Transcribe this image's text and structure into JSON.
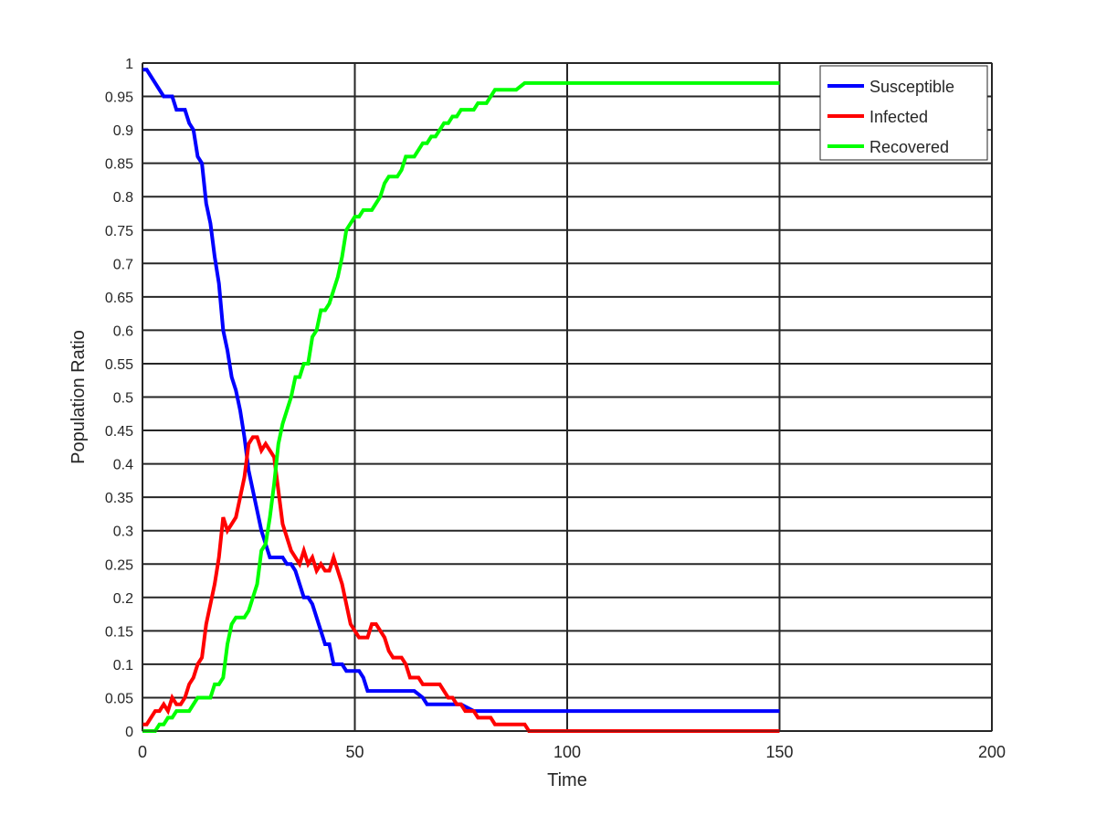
{
  "chart_data": {
    "type": "line",
    "title": "",
    "xlabel": "Time",
    "ylabel": "Population Ratio",
    "xlim": [
      0,
      200
    ],
    "ylim": [
      0,
      1
    ],
    "x_ticks": [
      "0",
      "50",
      "100",
      "150",
      "200"
    ],
    "y_ticks": [
      "0",
      "0.05",
      "0.1",
      "0.15",
      "0.2",
      "0.25",
      "0.3",
      "0.35",
      "0.4",
      "0.45",
      "0.5",
      "0.55",
      "0.6",
      "0.65",
      "0.7",
      "0.75",
      "0.8",
      "0.85",
      "0.9",
      "0.95",
      "1"
    ],
    "grid": true,
    "legend_position": "top-right",
    "series": [
      {
        "name": "Susceptible",
        "color": "#0000ff",
        "points": [
          [
            0,
            0.99
          ],
          [
            1,
            0.99
          ],
          [
            2,
            0.98
          ],
          [
            3,
            0.97
          ],
          [
            4,
            0.96
          ],
          [
            5,
            0.95
          ],
          [
            6,
            0.95
          ],
          [
            7,
            0.95
          ],
          [
            8,
            0.93
          ],
          [
            9,
            0.93
          ],
          [
            10,
            0.93
          ],
          [
            11,
            0.91
          ],
          [
            12,
            0.9
          ],
          [
            13,
            0.86
          ],
          [
            14,
            0.85
          ],
          [
            15,
            0.79
          ],
          [
            16,
            0.76
          ],
          [
            17,
            0.71
          ],
          [
            18,
            0.67
          ],
          [
            19,
            0.6
          ],
          [
            20,
            0.57
          ],
          [
            21,
            0.53
          ],
          [
            22,
            0.51
          ],
          [
            23,
            0.48
          ],
          [
            24,
            0.44
          ],
          [
            25,
            0.39
          ],
          [
            26,
            0.36
          ],
          [
            27,
            0.33
          ],
          [
            28,
            0.3
          ],
          [
            29,
            0.28
          ],
          [
            30,
            0.26
          ],
          [
            31,
            0.26
          ],
          [
            32,
            0.26
          ],
          [
            33,
            0.26
          ],
          [
            34,
            0.25
          ],
          [
            35,
            0.25
          ],
          [
            36,
            0.24
          ],
          [
            37,
            0.22
          ],
          [
            38,
            0.2
          ],
          [
            39,
            0.2
          ],
          [
            40,
            0.19
          ],
          [
            41,
            0.17
          ],
          [
            42,
            0.15
          ],
          [
            43,
            0.13
          ],
          [
            44,
            0.13
          ],
          [
            45,
            0.1
          ],
          [
            46,
            0.1
          ],
          [
            47,
            0.1
          ],
          [
            48,
            0.09
          ],
          [
            49,
            0.09
          ],
          [
            50,
            0.09
          ],
          [
            51,
            0.09
          ],
          [
            52,
            0.08
          ],
          [
            53,
            0.06
          ],
          [
            54,
            0.06
          ],
          [
            55,
            0.06
          ],
          [
            60,
            0.06
          ],
          [
            64,
            0.06
          ],
          [
            66,
            0.05
          ],
          [
            67,
            0.04
          ],
          [
            70,
            0.04
          ],
          [
            75,
            0.04
          ],
          [
            78,
            0.03
          ],
          [
            80,
            0.03
          ],
          [
            100,
            0.03
          ],
          [
            150,
            0.03
          ]
        ]
      },
      {
        "name": "Infected",
        "color": "#ff0000",
        "points": [
          [
            0,
            0.01
          ],
          [
            1,
            0.01
          ],
          [
            2,
            0.02
          ],
          [
            3,
            0.03
          ],
          [
            4,
            0.03
          ],
          [
            5,
            0.04
          ],
          [
            6,
            0.03
          ],
          [
            7,
            0.05
          ],
          [
            8,
            0.04
          ],
          [
            9,
            0.04
          ],
          [
            10,
            0.05
          ],
          [
            11,
            0.07
          ],
          [
            12,
            0.08
          ],
          [
            13,
            0.1
          ],
          [
            14,
            0.11
          ],
          [
            15,
            0.16
          ],
          [
            16,
            0.19
          ],
          [
            17,
            0.22
          ],
          [
            18,
            0.26
          ],
          [
            19,
            0.32
          ],
          [
            20,
            0.3
          ],
          [
            21,
            0.31
          ],
          [
            22,
            0.32
          ],
          [
            23,
            0.35
          ],
          [
            24,
            0.38
          ],
          [
            25,
            0.43
          ],
          [
            26,
            0.44
          ],
          [
            27,
            0.44
          ],
          [
            28,
            0.42
          ],
          [
            29,
            0.43
          ],
          [
            30,
            0.42
          ],
          [
            31,
            0.41
          ],
          [
            32,
            0.36
          ],
          [
            33,
            0.31
          ],
          [
            34,
            0.29
          ],
          [
            35,
            0.27
          ],
          [
            36,
            0.26
          ],
          [
            37,
            0.25
          ],
          [
            38,
            0.27
          ],
          [
            39,
            0.25
          ],
          [
            40,
            0.26
          ],
          [
            41,
            0.24
          ],
          [
            42,
            0.25
          ],
          [
            43,
            0.24
          ],
          [
            44,
            0.24
          ],
          [
            45,
            0.26
          ],
          [
            46,
            0.24
          ],
          [
            47,
            0.22
          ],
          [
            48,
            0.19
          ],
          [
            49,
            0.16
          ],
          [
            50,
            0.15
          ],
          [
            51,
            0.14
          ],
          [
            52,
            0.14
          ],
          [
            53,
            0.14
          ],
          [
            54,
            0.16
          ],
          [
            55,
            0.16
          ],
          [
            56,
            0.15
          ],
          [
            57,
            0.14
          ],
          [
            58,
            0.12
          ],
          [
            59,
            0.11
          ],
          [
            60,
            0.11
          ],
          [
            61,
            0.11
          ],
          [
            62,
            0.1
          ],
          [
            63,
            0.08
          ],
          [
            64,
            0.08
          ],
          [
            65,
            0.08
          ],
          [
            66,
            0.07
          ],
          [
            67,
            0.07
          ],
          [
            68,
            0.07
          ],
          [
            70,
            0.07
          ],
          [
            71,
            0.06
          ],
          [
            72,
            0.05
          ],
          [
            73,
            0.05
          ],
          [
            74,
            0.04
          ],
          [
            75,
            0.04
          ],
          [
            76,
            0.03
          ],
          [
            77,
            0.03
          ],
          [
            78,
            0.03
          ],
          [
            79,
            0.02
          ],
          [
            80,
            0.02
          ],
          [
            82,
            0.02
          ],
          [
            83,
            0.01
          ],
          [
            84,
            0.01
          ],
          [
            86,
            0.01
          ],
          [
            88,
            0.01
          ],
          [
            90,
            0.01
          ],
          [
            91,
            0
          ],
          [
            100,
            0
          ],
          [
            150,
            0
          ]
        ]
      },
      {
        "name": "Recovered",
        "color": "#00ff00",
        "points": [
          [
            0,
            0
          ],
          [
            1,
            0
          ],
          [
            2,
            0
          ],
          [
            3,
            0
          ],
          [
            4,
            0.01
          ],
          [
            5,
            0.01
          ],
          [
            6,
            0.02
          ],
          [
            7,
            0.02
          ],
          [
            8,
            0.03
          ],
          [
            9,
            0.03
          ],
          [
            10,
            0.03
          ],
          [
            11,
            0.03
          ],
          [
            12,
            0.04
          ],
          [
            13,
            0.05
          ],
          [
            14,
            0.05
          ],
          [
            15,
            0.05
          ],
          [
            16,
            0.05
          ],
          [
            17,
            0.07
          ],
          [
            18,
            0.07
          ],
          [
            19,
            0.08
          ],
          [
            20,
            0.13
          ],
          [
            21,
            0.16
          ],
          [
            22,
            0.17
          ],
          [
            23,
            0.17
          ],
          [
            24,
            0.17
          ],
          [
            25,
            0.18
          ],
          [
            26,
            0.2
          ],
          [
            27,
            0.22
          ],
          [
            28,
            0.27
          ],
          [
            29,
            0.28
          ],
          [
            30,
            0.32
          ],
          [
            31,
            0.37
          ],
          [
            32,
            0.43
          ],
          [
            33,
            0.46
          ],
          [
            34,
            0.48
          ],
          [
            35,
            0.5
          ],
          [
            36,
            0.53
          ],
          [
            37,
            0.53
          ],
          [
            38,
            0.55
          ],
          [
            39,
            0.55
          ],
          [
            40,
            0.59
          ],
          [
            41,
            0.6
          ],
          [
            42,
            0.63
          ],
          [
            43,
            0.63
          ],
          [
            44,
            0.64
          ],
          [
            45,
            0.66
          ],
          [
            46,
            0.68
          ],
          [
            47,
            0.71
          ],
          [
            48,
            0.75
          ],
          [
            49,
            0.76
          ],
          [
            50,
            0.77
          ],
          [
            51,
            0.77
          ],
          [
            52,
            0.78
          ],
          [
            53,
            0.78
          ],
          [
            54,
            0.78
          ],
          [
            55,
            0.79
          ],
          [
            56,
            0.8
          ],
          [
            57,
            0.82
          ],
          [
            58,
            0.83
          ],
          [
            59,
            0.83
          ],
          [
            60,
            0.83
          ],
          [
            61,
            0.84
          ],
          [
            62,
            0.86
          ],
          [
            63,
            0.86
          ],
          [
            64,
            0.86
          ],
          [
            65,
            0.87
          ],
          [
            66,
            0.88
          ],
          [
            67,
            0.88
          ],
          [
            68,
            0.89
          ],
          [
            69,
            0.89
          ],
          [
            70,
            0.9
          ],
          [
            71,
            0.91
          ],
          [
            72,
            0.91
          ],
          [
            73,
            0.92
          ],
          [
            74,
            0.92
          ],
          [
            75,
            0.93
          ],
          [
            76,
            0.93
          ],
          [
            77,
            0.93
          ],
          [
            78,
            0.93
          ],
          [
            79,
            0.94
          ],
          [
            80,
            0.94
          ],
          [
            81,
            0.94
          ],
          [
            82,
            0.95
          ],
          [
            83,
            0.96
          ],
          [
            84,
            0.96
          ],
          [
            86,
            0.96
          ],
          [
            88,
            0.96
          ],
          [
            90,
            0.97
          ],
          [
            91,
            0.97
          ],
          [
            100,
            0.97
          ],
          [
            150,
            0.97
          ]
        ]
      }
    ]
  }
}
